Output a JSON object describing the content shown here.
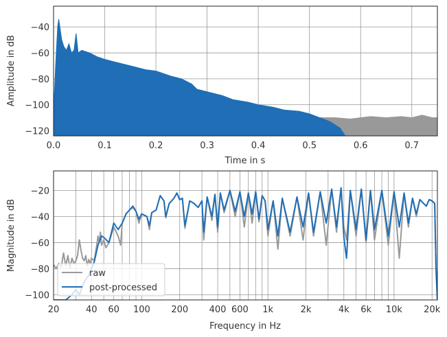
{
  "colors": {
    "raw": "#999999",
    "processed": "#1f6eb6",
    "grid": "#808080"
  },
  "chart_data": [
    {
      "type": "area",
      "xlabel": "Time in s",
      "ylabel": "Amplitude in dB",
      "xlim": [
        0,
        0.75
      ],
      "ylim": [
        -124,
        -24
      ],
      "grid": true,
      "xticks": [
        0.0,
        0.1,
        0.2,
        0.3,
        0.4,
        0.5,
        0.6,
        0.7
      ],
      "xtick_labels": [
        "0.0",
        "0.1",
        "0.2",
        "0.3",
        "0.4",
        "0.5",
        "0.6",
        "0.7"
      ],
      "yticks": [
        -40,
        -60,
        -80,
        -100,
        -120
      ],
      "ytick_labels": [
        "−40",
        "−60",
        "−80",
        "−100",
        "−120"
      ],
      "series": [
        {
          "name": "raw",
          "x": [
            0.0,
            0.5,
            0.52,
            0.55,
            0.58,
            0.6,
            0.62,
            0.65,
            0.68,
            0.7,
            0.72,
            0.74,
            0.75
          ],
          "y": [
            -95,
            -108,
            -110,
            -110,
            -111,
            -110,
            -109,
            -110,
            -109,
            -110,
            -108,
            -110,
            -110
          ]
        },
        {
          "name": "post-processed",
          "x": [
            0.0,
            0.004,
            0.008,
            0.01,
            0.013,
            0.016,
            0.02,
            0.025,
            0.03,
            0.035,
            0.04,
            0.044,
            0.048,
            0.055,
            0.07,
            0.085,
            0.1,
            0.12,
            0.15,
            0.18,
            0.2,
            0.23,
            0.25,
            0.27,
            0.28,
            0.3,
            0.33,
            0.35,
            0.38,
            0.4,
            0.43,
            0.45,
            0.48,
            0.5,
            0.52,
            0.54,
            0.56,
            0.57
          ],
          "y": [
            -105,
            -70,
            -40,
            -34,
            -42,
            -50,
            -55,
            -58,
            -53,
            -60,
            -58,
            -45,
            -60,
            -58,
            -60,
            -63,
            -65,
            -67,
            -70,
            -73,
            -74,
            -78,
            -80,
            -84,
            -88,
            -90,
            -93,
            -96,
            -98,
            -100,
            -102,
            -104,
            -105,
            -107,
            -110,
            -113,
            -118,
            -124
          ]
        }
      ]
    },
    {
      "type": "line",
      "xlabel": "Frequency in Hz",
      "ylabel": "Magnitude in dB",
      "xscale": "log",
      "xlim": [
        20,
        22050
      ],
      "ylim": [
        -104,
        -5
      ],
      "grid": true,
      "legend": "lower-left",
      "xticks": [
        20,
        40,
        60,
        100,
        200,
        400,
        600,
        1000,
        2000,
        4000,
        6000,
        10000,
        20000
      ],
      "xtick_labels": [
        "20",
        "40",
        "60",
        "100",
        "200",
        "400",
        "600",
        "1k",
        "2k",
        "4k",
        "6k",
        "10k",
        "20k"
      ],
      "yticks": [
        -20,
        -40,
        -60,
        -80,
        -100
      ],
      "ytick_labels": [
        "−20",
        "−40",
        "−60",
        "−80",
        "−100"
      ],
      "series": [
        {
          "name": "raw",
          "x": [
            20,
            21,
            22,
            23,
            24,
            25,
            26,
            27,
            28,
            29,
            30,
            31,
            32,
            33,
            34,
            35,
            36,
            37,
            38,
            39,
            40,
            42,
            44,
            45,
            46,
            47,
            48,
            50,
            52,
            55,
            60,
            65,
            68,
            70,
            75,
            80,
            85,
            90,
            95,
            100,
            110,
            115,
            120,
            130,
            140,
            150,
            155,
            165,
            180,
            190,
            200,
            210,
            220,
            240,
            260,
            280,
            300,
            310,
            330,
            360,
            380,
            400,
            420,
            450,
            500,
            550,
            600,
            650,
            700,
            750,
            800,
            850,
            900,
            950,
            1000,
            1100,
            1200,
            1300,
            1500,
            1700,
            1900,
            2100,
            2300,
            2600,
            2900,
            3200,
            3500,
            3800,
            4000,
            4200,
            4500,
            5000,
            5500,
            6000,
            6500,
            7000,
            8000,
            9000,
            10000,
            11000,
            12000,
            13000,
            14000,
            15000,
            16000,
            18000,
            19000,
            20000,
            21000,
            21500,
            22050
          ],
          "y": [
            -77,
            -80,
            -76,
            -79,
            -68,
            -78,
            -70,
            -80,
            -72,
            -76,
            -74,
            -70,
            -58,
            -66,
            -72,
            -74,
            -70,
            -78,
            -73,
            -76,
            -72,
            -74,
            -62,
            -55,
            -60,
            -52,
            -62,
            -58,
            -64,
            -60,
            -48,
            -55,
            -62,
            -45,
            -38,
            -35,
            -33,
            -36,
            -45,
            -38,
            -40,
            -50,
            -37,
            -35,
            -24,
            -28,
            -41,
            -30,
            -26,
            -22,
            -27,
            -26,
            -49,
            -28,
            -30,
            -33,
            -28,
            -58,
            -25,
            -43,
            -23,
            -52,
            -22,
            -37,
            -20,
            -40,
            -21,
            -48,
            -22,
            -45,
            -21,
            -44,
            -24,
            -28,
            -55,
            -28,
            -65,
            -26,
            -55,
            -25,
            -58,
            -22,
            -55,
            -21,
            -62,
            -19,
            -52,
            -18,
            -48,
            -58,
            -20,
            -55,
            -19,
            -60,
            -20,
            -58,
            -20,
            -62,
            -21,
            -72,
            -22,
            -48,
            -26,
            -40,
            -27,
            -32,
            -27,
            -28,
            -30,
            -80,
            -104
          ]
        },
        {
          "name": "post-processed",
          "x": [
            20,
            25,
            28,
            30,
            32,
            35,
            38,
            40,
            42,
            45,
            48,
            50,
            55,
            60,
            65,
            70,
            75,
            80,
            85,
            90,
            95,
            100,
            110,
            115,
            120,
            130,
            140,
            150,
            155,
            165,
            180,
            190,
            200,
            210,
            220,
            240,
            260,
            280,
            300,
            310,
            330,
            360,
            380,
            400,
            420,
            450,
            500,
            550,
            600,
            650,
            700,
            750,
            800,
            850,
            900,
            950,
            1000,
            1100,
            1200,
            1300,
            1500,
            1700,
            1900,
            2100,
            2300,
            2600,
            2900,
            3200,
            3500,
            3800,
            4000,
            4200,
            4500,
            5000,
            5500,
            6000,
            6500,
            7000,
            8000,
            9000,
            10000,
            11000,
            12000,
            13000,
            14000,
            15000,
            16000,
            18000,
            19000,
            20000,
            21000,
            21500,
            22050
          ],
          "y": [
            -104,
            -104,
            -100,
            -96,
            -100,
            -90,
            -85,
            -80,
            -75,
            -62,
            -55,
            -56,
            -60,
            -45,
            -50,
            -45,
            -38,
            -35,
            -32,
            -36,
            -42,
            -38,
            -40,
            -47,
            -37,
            -35,
            -24,
            -28,
            -40,
            -30,
            -26,
            -22,
            -27,
            -26,
            -47,
            -28,
            -30,
            -33,
            -28,
            -52,
            -25,
            -40,
            -23,
            -48,
            -22,
            -35,
            -20,
            -36,
            -21,
            -40,
            -22,
            -38,
            -21,
            -42,
            -24,
            -28,
            -50,
            -28,
            -55,
            -26,
            -52,
            -25,
            -48,
            -22,
            -52,
            -21,
            -45,
            -19,
            -48,
            -18,
            -56,
            -72,
            -20,
            -50,
            -19,
            -58,
            -20,
            -50,
            -20,
            -55,
            -21,
            -48,
            -22,
            -45,
            -26,
            -38,
            -27,
            -32,
            -27,
            -28,
            -30,
            -80,
            -105
          ]
        }
      ]
    }
  ]
}
